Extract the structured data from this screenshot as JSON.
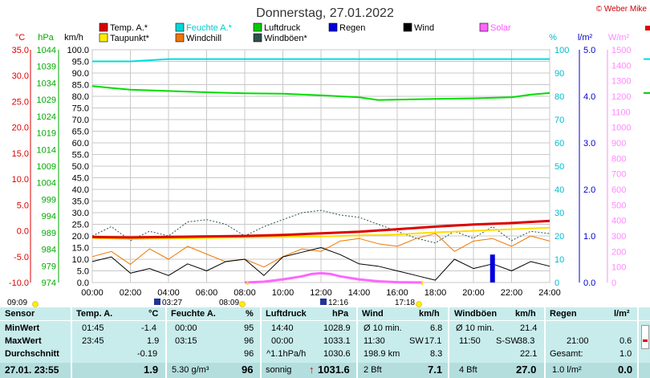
{
  "chart_data": {
    "type": "line",
    "title": "Donnerstag, 27.01.2022",
    "copyright": "© Weber Mike",
    "legend": [
      {
        "label": "Temp. A.*",
        "color": "#dd0000"
      },
      {
        "label": "Feuchte A.*",
        "color": "#00d8d8"
      },
      {
        "label": "Luftdruck",
        "color": "#00cc00"
      },
      {
        "label": "Regen",
        "color": "#0000dd"
      },
      {
        "label": "Wind",
        "color": "#000000"
      },
      {
        "label": "Solar",
        "color": "#ff66ff"
      },
      {
        "label": "Taupunkt*",
        "color": "#ffee00"
      },
      {
        "label": "Windchill",
        "color": "#ee7700"
      },
      {
        "label": "Windböen*",
        "color": "#2f4f4f"
      }
    ],
    "axes": {
      "temp": {
        "unit": "°C",
        "ticks": [
          "35.0",
          "30.0",
          "25.0",
          "20.0",
          "15.0",
          "10.0",
          "5.0",
          "0.0",
          "-5.0",
          "-10.0"
        ],
        "color": "#dd0000"
      },
      "pressure": {
        "unit": "hPa",
        "ticks": [
          "1044",
          "1039",
          "1034",
          "1029",
          "1024",
          "1019",
          "1014",
          "1009",
          "1004",
          "999",
          "994",
          "989",
          "984",
          "979",
          "974"
        ],
        "color": "#00aa00"
      },
      "wind": {
        "unit": "km/h",
        "ticks": [
          "100.0",
          "95.0",
          "90.0",
          "85.0",
          "80.0",
          "75.0",
          "70.0",
          "65.0",
          "60.0",
          "55.0",
          "50.0",
          "45.0",
          "40.0",
          "35.0",
          "30.0",
          "25.0",
          "20.0",
          "15.0",
          "10.0",
          "5.0",
          "0.0"
        ],
        "color": "#000000"
      },
      "humidity": {
        "unit": "%",
        "ticks": [
          "100",
          "90",
          "80",
          "70",
          "60",
          "50",
          "40",
          "30",
          "20",
          "10",
          "0"
        ],
        "color": "#00bbcc"
      },
      "rain": {
        "unit": "l/m²",
        "ticks": [
          "5.0",
          "4.0",
          "3.0",
          "2.0",
          "1.0",
          "0.0"
        ],
        "color": "#0000cc"
      },
      "solar": {
        "unit": "W/m²",
        "ticks": [
          "1500",
          "1400",
          "1300",
          "1200",
          "1100",
          "1000",
          "900",
          "800",
          "700",
          "600",
          "500",
          "400",
          "300",
          "200",
          "100",
          "0"
        ],
        "color": "#ff88ff"
      }
    },
    "x_ticks": [
      "00:00",
      "02:00",
      "04:00",
      "06:00",
      "08:00",
      "10:00",
      "12:00",
      "14:00",
      "16:00",
      "18:00",
      "20:00",
      "22:00",
      "24:00"
    ],
    "x_range_hours": [
      0,
      24
    ],
    "events": [
      {
        "time": "09:09",
        "icon": "sun"
      },
      {
        "time": "03:27",
        "icon": "moon"
      },
      {
        "time": "08:09",
        "icon": "sun"
      },
      {
        "time": "12:16",
        "icon": "moon"
      },
      {
        "time": "17:18",
        "icon": "sun"
      }
    ],
    "series": [
      {
        "name": "Temp. A.*",
        "unit": "°C",
        "x": [
          0,
          2,
          4,
          6,
          8,
          10,
          12,
          14,
          16,
          18,
          20,
          22,
          24
        ],
        "y": [
          -1.2,
          -1.3,
          -1.2,
          -1.1,
          -1.0,
          -0.8,
          -0.5,
          -0.2,
          0.3,
          0.8,
          1.2,
          1.5,
          1.9
        ]
      },
      {
        "name": "Taupunkt*",
        "unit": "°C",
        "x": [
          0,
          2,
          4,
          6,
          8,
          10,
          12,
          14,
          16,
          18,
          20,
          22,
          24
        ],
        "y": [
          -1.4,
          -1.6,
          -1.5,
          -1.4,
          -1.3,
          -1.2,
          -1.1,
          -0.9,
          -0.7,
          -0.3,
          0.0,
          0.3,
          0.6
        ]
      },
      {
        "name": "Feuchte A.*",
        "unit": "%",
        "x": [
          0,
          2,
          4,
          6,
          8,
          10,
          12,
          14,
          16,
          18,
          20,
          22,
          24
        ],
        "y": [
          95,
          95,
          96,
          96,
          96,
          96,
          96,
          96,
          96,
          96,
          96,
          96,
          96
        ]
      },
      {
        "name": "Luftdruck",
        "unit": "hPa",
        "x": [
          0,
          1,
          2,
          4,
          6,
          8,
          10,
          12,
          14,
          15,
          16,
          18,
          20,
          22,
          23,
          24
        ],
        "y": [
          1033.1,
          1032.5,
          1032.0,
          1031.6,
          1031.2,
          1030.9,
          1030.8,
          1030.3,
          1029.7,
          1028.9,
          1029.0,
          1029.2,
          1029.4,
          1029.7,
          1030.5,
          1031.0
        ]
      },
      {
        "name": "Wind",
        "unit": "km/h",
        "x": [
          0,
          1,
          2,
          3,
          4,
          5,
          6,
          7,
          8,
          9,
          10,
          11,
          12,
          13,
          14,
          15,
          16,
          17,
          18,
          19,
          20,
          21,
          22,
          23,
          24
        ],
        "y": [
          9,
          11,
          4,
          6,
          3,
          8,
          5,
          9,
          10,
          3,
          11,
          13,
          15,
          12,
          8,
          7,
          5,
          3,
          1,
          10,
          6,
          8,
          5,
          9,
          7
        ]
      },
      {
        "name": "Windböen*",
        "unit": "km/h",
        "x": [
          0,
          1,
          2,
          3,
          4,
          5,
          6,
          7,
          8,
          9,
          10,
          11,
          12,
          13,
          14,
          15,
          16,
          17,
          18,
          19,
          20,
          21,
          22,
          23,
          24
        ],
        "y": [
          20,
          24,
          18,
          22,
          20,
          26,
          27,
          25,
          20,
          24,
          27,
          30,
          31,
          29,
          28,
          25,
          22,
          19,
          17,
          22,
          19,
          24,
          18,
          22,
          21
        ]
      },
      {
        "name": "Windchill",
        "unit": "°C",
        "x": [
          0,
          1,
          2,
          3,
          4,
          5,
          6,
          7,
          8,
          9,
          10,
          11,
          12,
          13,
          14,
          15,
          16,
          17,
          18,
          19,
          20,
          21,
          22,
          23,
          24
        ],
        "y": [
          -5.0,
          -4.0,
          -6.5,
          -3.5,
          -5.5,
          -3.0,
          -4.5,
          -6.0,
          -5.5,
          -7.0,
          -5.0,
          -3.5,
          -4.0,
          -2.0,
          -1.5,
          -2.5,
          -3.0,
          -1.5,
          -0.5,
          -4.0,
          -2.0,
          -1.5,
          -3.0,
          -1.0,
          -2.0
        ]
      },
      {
        "name": "Solar",
        "unit": "W/m²",
        "x": [
          8,
          9,
          10,
          11,
          11.5,
          12,
          12.5,
          13,
          14,
          15,
          16,
          17.3
        ],
        "y": [
          0,
          5,
          20,
          40,
          55,
          60,
          55,
          40,
          20,
          8,
          2,
          0
        ]
      },
      {
        "name": "Regen",
        "unit": "l/m²",
        "x": [
          21.0
        ],
        "y": [
          0.6
        ]
      }
    ]
  },
  "table": {
    "headers": {
      "sensor": "Sensor",
      "temp": "Temp. A.",
      "temp_unit": "°C",
      "hum": "Feuchte A.",
      "hum_unit": "%",
      "press": "Luftdruck",
      "press_unit": "hPa",
      "wind": "Wind",
      "wind_unit": "km/h",
      "gust": "Windböen",
      "gust_unit": "km/h",
      "rain": "Regen",
      "rain_unit": "l/m²"
    },
    "labels": {
      "min": "MinWert",
      "max": "MaxWert",
      "avg": "Durchschnitt",
      "now": "27.01. 23:55"
    },
    "temp": {
      "min_time": "01:45",
      "min": "-1.4",
      "max_time": "23:45",
      "max": "1.9",
      "avg": "-0.19",
      "now": "1.9"
    },
    "hum": {
      "min_time": "00:00",
      "min": "95",
      "max_time": "03:15",
      "max": "96",
      "avg": "96",
      "abs": "5.30 g/m³",
      "now": "96"
    },
    "press": {
      "min_time": "14:40",
      "min": "1028.9",
      "max_time": "00:00",
      "max": "1033.1",
      "trend": "^1.1hPa/h",
      "avg": "1030.6",
      "desc": "sonnig",
      "arrow": "↑",
      "now": "1031.6"
    },
    "wind": {
      "avg_label": "Ø 10 min.",
      "min": "6.8",
      "max_time": "11:30",
      "max_dir": "SW",
      "max": "17.1",
      "dist": "198.9 km",
      "avg": "8.3",
      "bft": "2 Bft",
      "now": "7.1"
    },
    "gust": {
      "avg_label": "Ø 10 min.",
      "min": "21.4",
      "max_time": "11:50",
      "max_dir": "S-SW",
      "max": "38.3",
      "avg": "22.1",
      "bft": "4 Bft",
      "now": "27.0"
    },
    "rain": {
      "max_time": "21:00",
      "max": "0.6",
      "total_label": "Gesamt:",
      "total": "1.0",
      "now_rate": "1.0 l/m²",
      "now": "0.0"
    }
  }
}
